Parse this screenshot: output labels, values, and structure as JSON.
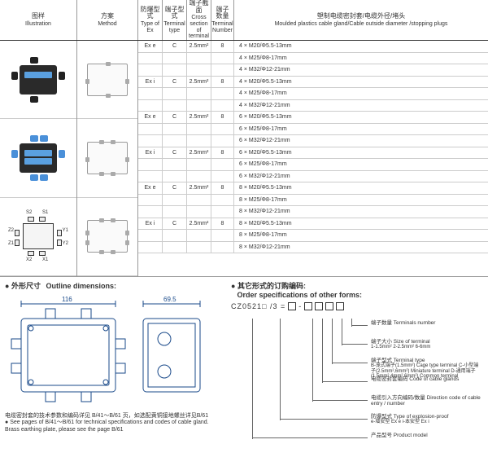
{
  "headers": {
    "illustration": {
      "cn": "图样",
      "en": "Illustration"
    },
    "method": {
      "cn": "方案",
      "en": "Method"
    },
    "typeex": {
      "cn": "防爆型式",
      "en": "Type of Ex"
    },
    "termtype": {
      "cn": "端子型式",
      "en": "Terminal type"
    },
    "cross": {
      "cn": "端子截面",
      "en": "Cross section of terminal"
    },
    "termnum": {
      "cn": "端子数量",
      "en": "Terminal Number"
    },
    "gland": {
      "cn": "塑制电缆密封套/电缆外径/堵头",
      "en": "Moulded plastics cable gland/Cable outside diameter /stopping plugs"
    }
  },
  "rows": [
    {
      "ex": "Ex e",
      "tt": "C",
      "cs": "2.5mm²",
      "tn": "8",
      "gl": "4 × M20/Φ5.5-13mm"
    },
    {
      "ex": "",
      "tt": "",
      "cs": "",
      "tn": "",
      "gl": "4 × M25/Φ8-17mm"
    },
    {
      "ex": "",
      "tt": "",
      "cs": "",
      "tn": "",
      "gl": "4 × M32/Φ12-21mm"
    },
    {
      "ex": "Ex i",
      "tt": "C",
      "cs": "2.5mm²",
      "tn": "8",
      "gl": "4 × M20/Φ5.5-13mm"
    },
    {
      "ex": "",
      "tt": "",
      "cs": "",
      "tn": "",
      "gl": "4 × M25/Φ8-17mm"
    },
    {
      "ex": "",
      "tt": "",
      "cs": "",
      "tn": "",
      "gl": "4 × M32/Φ12-21mm"
    },
    {
      "ex": "Ex e",
      "tt": "C",
      "cs": "2.5mm²",
      "tn": "8",
      "gl": "6 × M20/Φ5.5-13mm"
    },
    {
      "ex": "",
      "tt": "",
      "cs": "",
      "tn": "",
      "gl": "6 × M25/Φ8-17mm"
    },
    {
      "ex": "",
      "tt": "",
      "cs": "",
      "tn": "",
      "gl": "6 × M32/Φ12-21mm"
    },
    {
      "ex": "Ex i",
      "tt": "C",
      "cs": "2.5mm²",
      "tn": "8",
      "gl": "6 × M20/Φ5.5-13mm"
    },
    {
      "ex": "",
      "tt": "",
      "cs": "",
      "tn": "",
      "gl": "6 × M25/Φ8-17mm"
    },
    {
      "ex": "",
      "tt": "",
      "cs": "",
      "tn": "",
      "gl": "6 × M32/Φ12-21mm"
    },
    {
      "ex": "Ex e",
      "tt": "C",
      "cs": "2.5mm²",
      "tn": "8",
      "gl": "8 × M20/Φ5.5-13mm"
    },
    {
      "ex": "",
      "tt": "",
      "cs": "",
      "tn": "",
      "gl": "8 × M25/Φ8-17mm"
    },
    {
      "ex": "",
      "tt": "",
      "cs": "",
      "tn": "",
      "gl": "8 × M32/Φ12-21mm"
    },
    {
      "ex": "Ex i",
      "tt": "C",
      "cs": "2.5mm²",
      "tn": "8",
      "gl": "8 × M20/Φ5.5-13mm"
    },
    {
      "ex": "",
      "tt": "",
      "cs": "",
      "tn": "",
      "gl": "8 × M25/Φ8-17mm"
    },
    {
      "ex": "",
      "tt": "",
      "cs": "",
      "tn": "",
      "gl": "8 × M32/Φ12-21mm"
    }
  ],
  "outline": {
    "title_cn": "外形尺寸",
    "title_en": "Outline dimensions:",
    "dim_w": "116",
    "dim_h": "69.5",
    "note_cn": "电缆密封套的技术参数和编码详见 B/41～B/61 页，如选配黄铜接地螺丝详见B/61",
    "note_en": "See pages of B/41～B/61 for technical specifications and codes of cable gland. Brass earthing plate, please see the page B/61"
  },
  "order": {
    "title_cn": "其它形式的订购编码:",
    "title_en": "Order specifications of other forms:",
    "code_prefix": "CZ0521□ /3 =",
    "items": [
      {
        "cn": "端子数量",
        "en": "Terminals number"
      },
      {
        "cn": "端子大小",
        "en": "Size of terminal",
        "detail": "1-1.5mm²  2-2.5mm²  6-6mm"
      },
      {
        "cn": "端子型式",
        "en": "Terminal type",
        "detail": "B-笼式端子(1.5mm²) Cage type terminal  C-小型端子(2.5mm²,6mm²) Miniature terminal  D-通用端子(1.5mm²,4mm²,6mm²) Common terminal"
      },
      {
        "cn": "电缆密封套编码",
        "en": "Code of cable glands"
      },
      {
        "cn": "电缆引入方向编码/数量",
        "en": "Direction code of cable entry / number"
      },
      {
        "cn": "防爆型式",
        "en": "Type of explosion-proof",
        "detail": "e-增安型 Ex e  i-本安型 Ex i"
      },
      {
        "cn": "产品型号",
        "en": "Product model"
      }
    ]
  },
  "labels": {
    "x1": "X1",
    "x2": "X2",
    "s1": "S1",
    "s2": "S2",
    "y1": "Y1",
    "y2": "Y2",
    "z1": "Z1",
    "z2": "Z2"
  },
  "colors": {
    "box": "#2a2a2a",
    "gland_blue": "#4a90d9",
    "term": "#5aa0e0",
    "line": "#666",
    "border": "#999"
  }
}
